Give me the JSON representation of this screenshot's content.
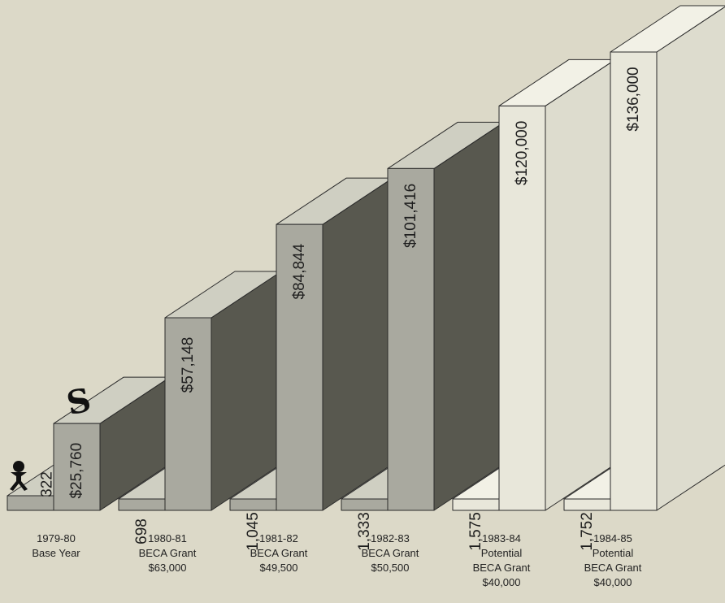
{
  "chart_data": {
    "type": "bar",
    "categories": [
      {
        "lines": [
          "1979-80",
          "Base Year"
        ]
      },
      {
        "lines": [
          "1980-81",
          "BECA Grant",
          "$63,000"
        ]
      },
      {
        "lines": [
          "1981-82",
          "BECA Grant",
          "$49,500"
        ]
      },
      {
        "lines": [
          "1982-83",
          "BECA Grant",
          "$50,500"
        ]
      },
      {
        "lines": [
          "1983-84",
          "Potential",
          "BECA Grant",
          "$40,000"
        ]
      },
      {
        "lines": [
          "1984-85",
          "Potential",
          "BECA Grant",
          "$40,000"
        ]
      }
    ],
    "series": [
      {
        "values": [
          322,
          698,
          1045,
          1333,
          1575,
          1752
        ],
        "labels": [
          "322",
          "698",
          "1,045",
          "1,333",
          "1,575",
          "1,752"
        ]
      },
      {
        "values": [
          25760,
          57148,
          84844,
          101416,
          120000,
          136000
        ],
        "labels": [
          "$25,760",
          "$57,148",
          "$84,844",
          "$101,416",
          "$120,000",
          "$136,000"
        ]
      }
    ],
    "ylim": [
      0,
      136000
    ],
    "style": "3d-bars",
    "colors": {
      "solid_front": "#a9a99f",
      "solid_top": "#cfcfc2",
      "solid_side": "#58584f",
      "light_front": "#e8e7da",
      "light_top": "#f2f1e6",
      "light_side": "#dddcce",
      "outline": "#2a2a2a"
    }
  },
  "icons": {
    "person": "person-icon",
    "dollar": "dollar-sign-icon"
  }
}
